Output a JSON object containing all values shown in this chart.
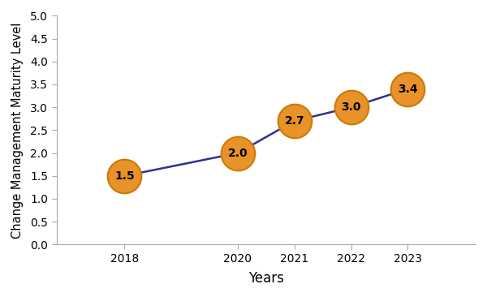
{
  "years": [
    2018,
    2020,
    2021,
    2022,
    2023
  ],
  "values": [
    1.5,
    2.0,
    2.7,
    3.0,
    3.4
  ],
  "labels": [
    "1.5",
    "2.0",
    "2.7",
    "3.0",
    "3.4"
  ],
  "line_color": "#2e3192",
  "marker_facecolor": "#e8922a",
  "marker_edgecolor": "#cc7a00",
  "xlabel": "Years",
  "ylabel": "Change Management Maturity Level",
  "ylim": [
    0.0,
    5.0
  ],
  "xlim": [
    2016.8,
    2024.2
  ],
  "yticks": [
    0.0,
    0.5,
    1.0,
    1.5,
    2.0,
    2.5,
    3.0,
    3.5,
    4.0,
    4.5,
    5.0
  ],
  "background_color": "#ffffff",
  "xlabel_fontsize": 12,
  "ylabel_fontsize": 10.5,
  "tick_fontsize": 10,
  "label_fontsize": 10,
  "line_width": 1.8,
  "marker_size": 900
}
